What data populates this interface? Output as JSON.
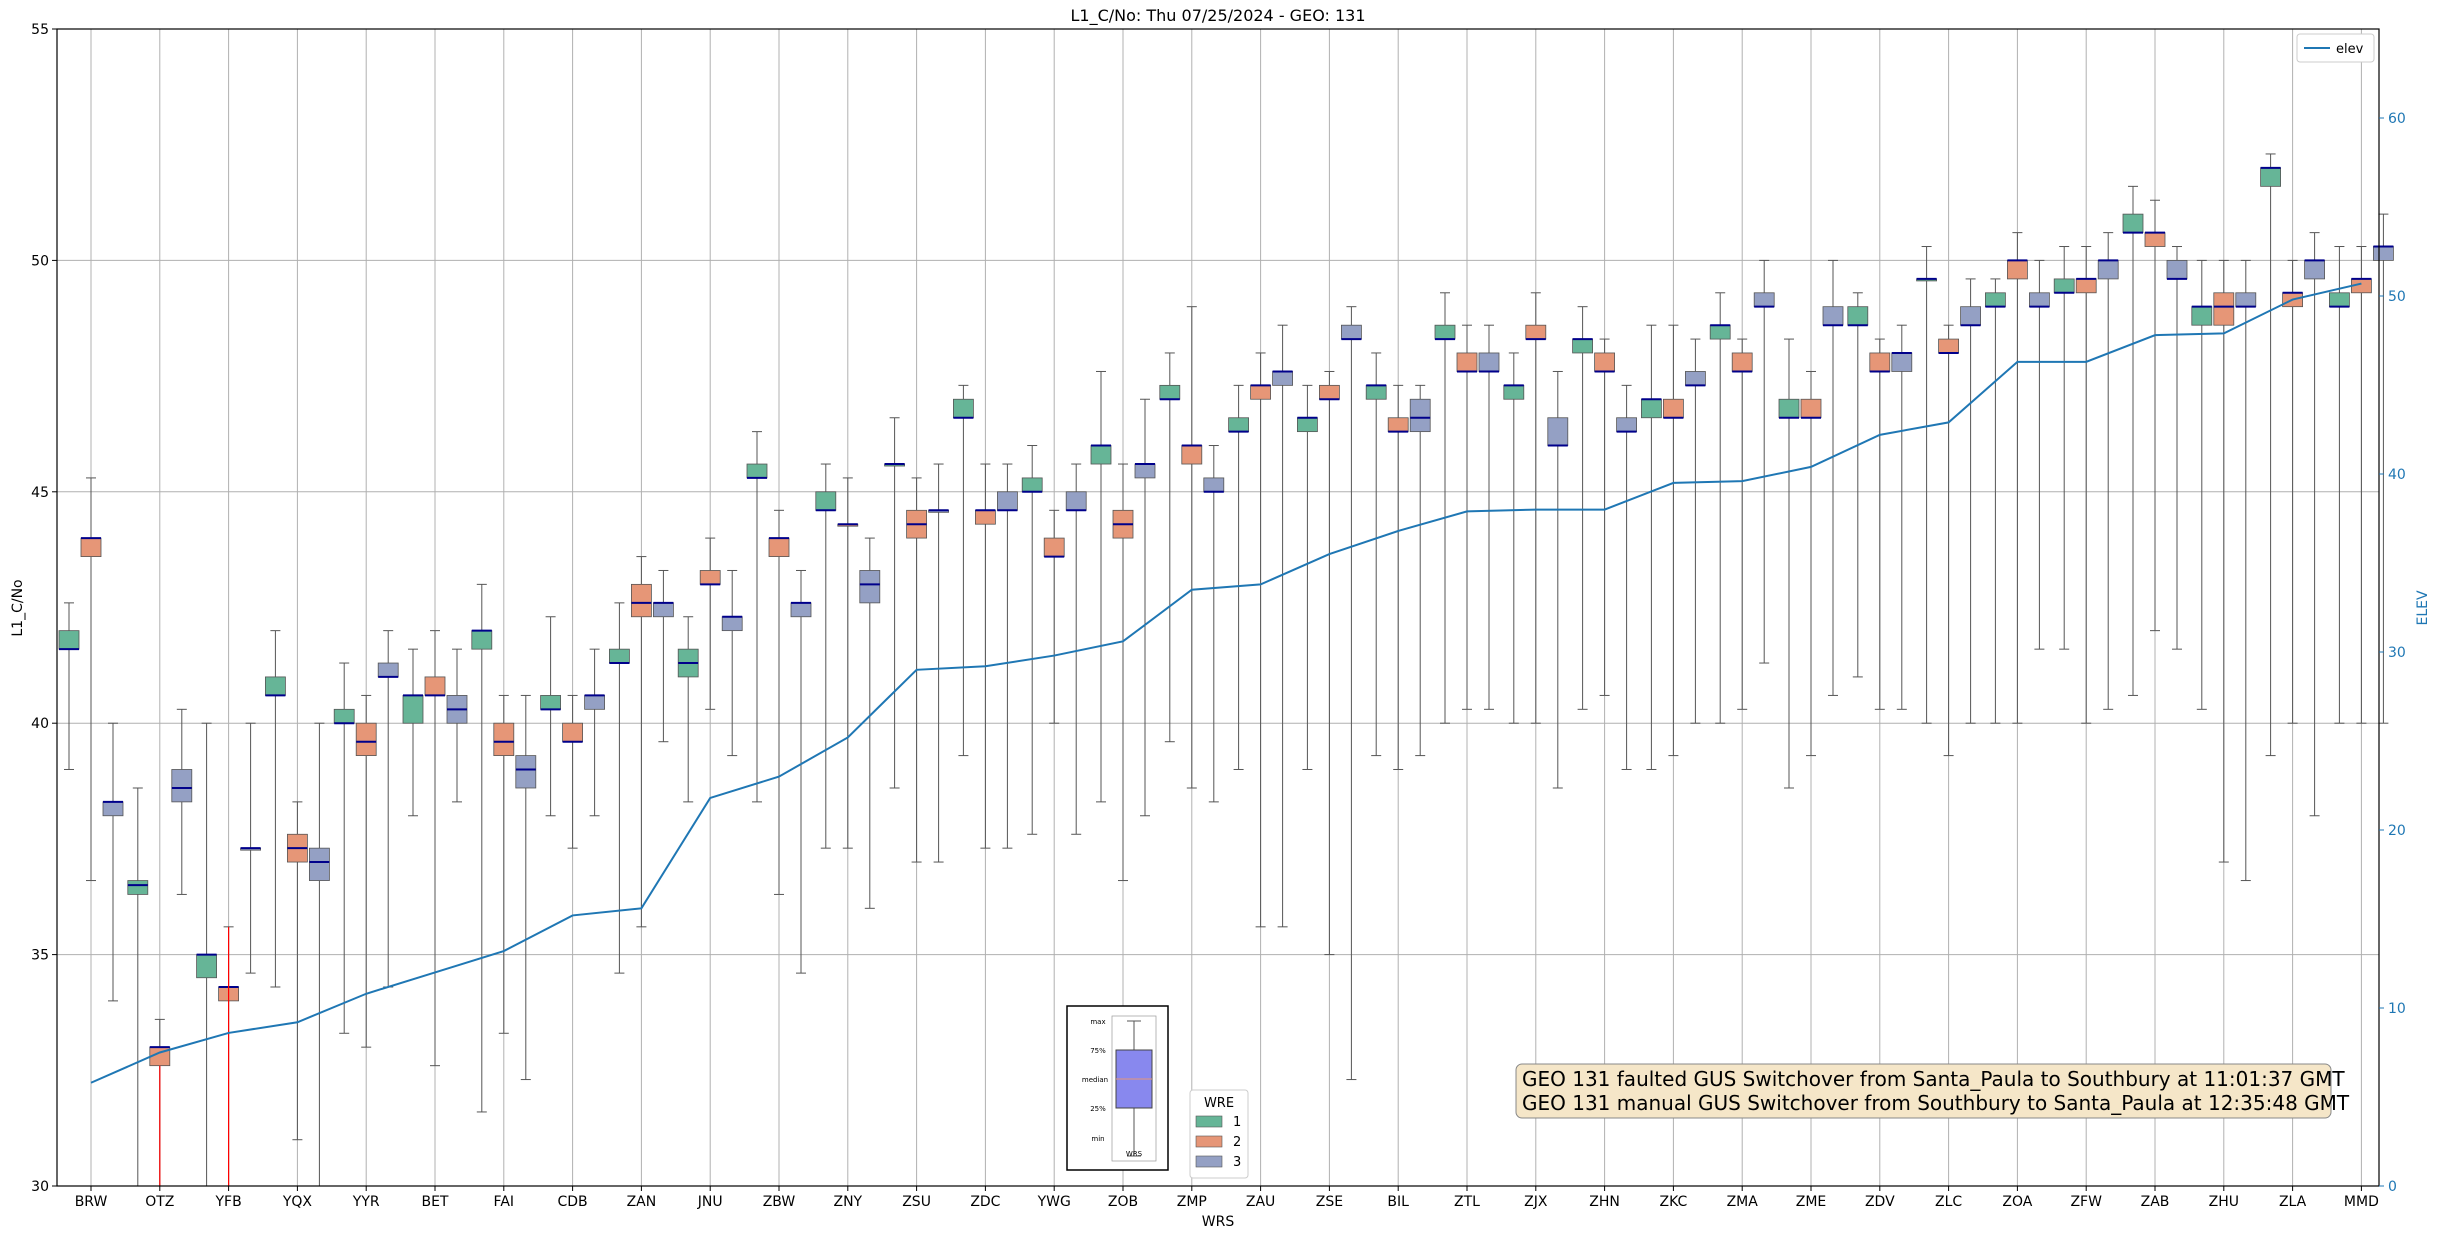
{
  "chart_data": {
    "type": "box",
    "title": "L1_C/No: Thu 07/25/2024 - GEO: 131",
    "xlabel": "WRS",
    "ylabel": "L1_C/No",
    "ylabel_right": "ELEV",
    "ylim": [
      30,
      55
    ],
    "ylim_right": [
      0,
      65
    ],
    "yticks": [
      30,
      35,
      40,
      45,
      50,
      55
    ],
    "yticks_right": [
      0,
      10,
      20,
      30,
      40,
      50,
      60
    ],
    "grid": true,
    "categories": [
      "BRW",
      "OTZ",
      "YFB",
      "YQX",
      "YYR",
      "BET",
      "FAI",
      "CDB",
      "ZAN",
      "JNU",
      "ZBW",
      "ZNY",
      "ZSU",
      "ZDC",
      "YWG",
      "ZOB",
      "ZMP",
      "ZAU",
      "ZSE",
      "BIL",
      "ZTL",
      "ZJX",
      "ZHN",
      "ZKC",
      "ZMA",
      "ZME",
      "ZDV",
      "ZLC",
      "ZOA",
      "ZFW",
      "ZAB",
      "ZHU",
      "ZLA",
      "MMD"
    ],
    "series_colors": {
      "1": "#66b597",
      "2": "#e69677",
      "3": "#94a0c4",
      "elev": "#1f77b4",
      "median": "#00008b",
      "whisker": "#555555",
      "whisker_alt": "#ff0000"
    },
    "box_series": [
      {
        "name": "1",
        "boxes": [
          [
            0,
            39.0,
            41.6,
            41.6,
            42.0,
            42.6
          ],
          [
            1,
            29.5,
            36.3,
            36.5,
            36.6,
            38.6
          ],
          [
            2,
            30.0,
            34.5,
            35.0,
            35.0,
            40.0
          ],
          [
            3,
            34.3,
            40.6,
            40.6,
            41.0,
            42.0
          ],
          [
            4,
            33.3,
            40.0,
            40.0,
            40.3,
            41.3
          ],
          [
            5,
            38.0,
            40.0,
            40.6,
            40.6,
            41.6
          ],
          [
            6,
            31.6,
            41.6,
            42.0,
            42.0,
            43.0
          ],
          [
            7,
            38.0,
            40.3,
            40.3,
            40.6,
            42.3
          ],
          [
            8,
            34.6,
            41.3,
            41.3,
            41.6,
            42.6
          ],
          [
            9,
            38.3,
            41.0,
            41.3,
            41.6,
            42.3
          ],
          [
            10,
            38.3,
            45.3,
            45.3,
            45.6,
            46.3
          ],
          [
            11,
            37.3,
            44.6,
            44.6,
            45.0,
            45.6
          ],
          [
            12,
            38.6,
            45.6,
            45.6,
            45.6,
            46.6
          ],
          [
            13,
            39.3,
            46.6,
            46.6,
            47.0,
            47.3
          ],
          [
            14,
            37.6,
            45.0,
            45.0,
            45.3,
            46.0
          ],
          [
            15,
            38.3,
            45.6,
            46.0,
            46.0,
            47.6
          ],
          [
            16,
            39.6,
            47.0,
            47.0,
            47.3,
            48.0
          ],
          [
            17,
            39.0,
            46.3,
            46.3,
            46.6,
            47.3
          ],
          [
            18,
            39.0,
            46.3,
            46.6,
            46.6,
            47.3
          ],
          [
            19,
            39.3,
            47.0,
            47.3,
            47.3,
            48.0
          ],
          [
            20,
            40.0,
            48.3,
            48.3,
            48.6,
            49.3
          ],
          [
            21,
            40.0,
            47.0,
            47.3,
            47.3,
            48.0
          ],
          [
            22,
            40.3,
            48.0,
            48.3,
            48.3,
            49.0
          ],
          [
            23,
            39.0,
            46.6,
            47.0,
            47.0,
            48.6
          ],
          [
            24,
            40.0,
            48.3,
            48.6,
            48.6,
            49.3
          ],
          [
            25,
            38.6,
            46.6,
            46.6,
            47.0,
            48.3
          ],
          [
            26,
            41.0,
            48.6,
            48.6,
            49.0,
            49.3
          ],
          [
            27,
            40.0,
            49.6,
            49.6,
            49.6,
            50.3
          ],
          [
            28,
            40.0,
            49.0,
            49.0,
            49.3,
            49.6
          ],
          [
            29,
            41.6,
            49.3,
            49.3,
            49.6,
            50.3
          ],
          [
            30,
            40.6,
            50.6,
            50.6,
            51.0,
            51.6
          ],
          [
            31,
            40.3,
            48.6,
            49.0,
            49.0,
            50.0
          ],
          [
            32,
            39.3,
            51.6,
            52.0,
            52.0,
            52.3
          ],
          [
            33,
            40.0,
            49.0,
            49.0,
            49.3,
            50.3
          ]
        ]
      },
      {
        "name": "2",
        "boxes": [
          [
            0,
            36.6,
            43.6,
            44.0,
            44.0,
            45.3
          ],
          [
            1,
            28.0,
            32.6,
            33.0,
            33.0,
            33.6
          ],
          [
            2,
            29.5,
            34.0,
            34.3,
            34.3,
            35.6
          ],
          [
            3,
            31.0,
            37.0,
            37.3,
            37.6,
            38.3
          ],
          [
            4,
            33.0,
            39.3,
            39.6,
            40.0,
            40.6
          ],
          [
            5,
            32.6,
            40.6,
            40.6,
            41.0,
            42.0
          ],
          [
            6,
            33.3,
            39.3,
            39.6,
            40.0,
            40.6
          ],
          [
            7,
            37.3,
            39.6,
            39.6,
            40.0,
            40.6
          ],
          [
            8,
            35.6,
            42.3,
            42.6,
            43.0,
            43.6
          ],
          [
            9,
            40.3,
            43.0,
            43.0,
            43.3,
            44.0
          ],
          [
            10,
            36.3,
            43.6,
            44.0,
            44.0,
            44.6
          ],
          [
            11,
            37.3,
            44.3,
            44.3,
            44.3,
            45.3
          ],
          [
            12,
            37.0,
            44.0,
            44.3,
            44.6,
            45.3
          ],
          [
            13,
            37.3,
            44.3,
            44.6,
            44.6,
            45.6
          ],
          [
            14,
            40.0,
            43.6,
            43.6,
            44.0,
            44.6
          ],
          [
            15,
            36.6,
            44.0,
            44.3,
            44.6,
            45.6
          ],
          [
            16,
            38.6,
            45.6,
            46.0,
            46.0,
            49.0
          ],
          [
            17,
            35.6,
            47.0,
            47.3,
            47.3,
            48.0
          ],
          [
            18,
            35.0,
            47.0,
            47.0,
            47.3,
            47.6
          ],
          [
            19,
            39.0,
            46.3,
            46.3,
            46.6,
            47.3
          ],
          [
            20,
            40.3,
            47.6,
            47.6,
            48.0,
            48.6
          ],
          [
            21,
            40.0,
            48.3,
            48.3,
            48.6,
            49.3
          ],
          [
            22,
            40.6,
            47.6,
            47.6,
            48.0,
            48.3
          ],
          [
            23,
            39.3,
            46.6,
            46.6,
            47.0,
            48.6
          ],
          [
            24,
            40.3,
            47.6,
            47.6,
            48.0,
            48.3
          ],
          [
            25,
            39.3,
            46.6,
            46.6,
            47.0,
            47.6
          ],
          [
            26,
            40.3,
            47.6,
            47.6,
            48.0,
            48.3
          ],
          [
            27,
            39.3,
            48.0,
            48.0,
            48.3,
            48.6
          ],
          [
            28,
            40.0,
            49.6,
            50.0,
            50.0,
            50.6
          ],
          [
            29,
            40.0,
            49.3,
            49.6,
            49.6,
            50.3
          ],
          [
            30,
            42.0,
            50.3,
            50.6,
            50.6,
            51.3
          ],
          [
            31,
            37.0,
            48.6,
            49.0,
            49.3,
            50.0
          ],
          [
            32,
            40.0,
            49.0,
            49.3,
            49.3,
            50.0
          ],
          [
            33,
            40.0,
            49.3,
            49.6,
            49.6,
            50.3
          ]
        ]
      },
      {
        "name": "3",
        "boxes": [
          [
            0,
            34.0,
            38.0,
            38.3,
            38.3,
            40.0
          ],
          [
            1,
            36.3,
            38.3,
            38.6,
            39.0,
            40.3
          ],
          [
            2,
            34.6,
            37.3,
            37.3,
            37.3,
            40.0
          ],
          [
            3,
            29.0,
            36.6,
            37.0,
            37.3,
            40.0
          ],
          [
            4,
            34.3,
            41.0,
            41.0,
            41.3,
            42.0
          ],
          [
            5,
            38.3,
            40.0,
            40.3,
            40.6,
            41.6
          ],
          [
            6,
            32.3,
            38.6,
            39.0,
            39.3,
            40.6
          ],
          [
            7,
            38.0,
            40.3,
            40.6,
            40.6,
            41.6
          ],
          [
            8,
            39.6,
            42.3,
            42.6,
            42.6,
            43.3
          ],
          [
            9,
            39.3,
            42.0,
            42.3,
            42.3,
            43.3
          ],
          [
            10,
            34.6,
            42.3,
            42.6,
            42.6,
            43.3
          ],
          [
            11,
            36.0,
            42.6,
            43.0,
            43.3,
            44.0
          ],
          [
            12,
            37.0,
            44.6,
            44.6,
            44.6,
            45.6
          ],
          [
            13,
            37.3,
            44.6,
            44.6,
            45.0,
            45.6
          ],
          [
            14,
            37.6,
            44.6,
            44.6,
            45.0,
            45.6
          ],
          [
            15,
            38.0,
            45.3,
            45.6,
            45.6,
            47.0
          ],
          [
            16,
            38.3,
            45.0,
            45.0,
            45.3,
            46.0
          ],
          [
            17,
            35.6,
            47.3,
            47.6,
            47.6,
            48.6
          ],
          [
            18,
            32.3,
            48.3,
            48.3,
            48.6,
            49.0
          ],
          [
            19,
            39.3,
            46.3,
            46.6,
            47.0,
            47.3
          ],
          [
            20,
            40.3,
            47.6,
            47.6,
            48.0,
            48.6
          ],
          [
            21,
            38.6,
            46.0,
            46.0,
            46.6,
            47.6
          ],
          [
            22,
            39.0,
            46.3,
            46.3,
            46.6,
            47.3
          ],
          [
            23,
            40.0,
            47.3,
            47.3,
            47.6,
            48.3
          ],
          [
            24,
            41.3,
            49.0,
            49.0,
            49.3,
            50.0
          ],
          [
            25,
            40.6,
            48.6,
            48.6,
            49.0,
            50.0
          ],
          [
            26,
            40.3,
            47.6,
            48.0,
            48.0,
            48.6
          ],
          [
            27,
            40.0,
            48.6,
            48.6,
            49.0,
            49.6
          ],
          [
            28,
            41.6,
            49.0,
            49.0,
            49.3,
            50.0
          ],
          [
            29,
            40.3,
            49.6,
            50.0,
            50.0,
            50.6
          ],
          [
            30,
            41.6,
            49.6,
            49.6,
            50.0,
            50.3
          ],
          [
            31,
            36.6,
            49.0,
            49.0,
            49.3,
            50.0
          ],
          [
            32,
            38.0,
            49.6,
            50.0,
            50.0,
            50.6
          ],
          [
            33,
            40.0,
            50.0,
            50.3,
            50.3,
            51.0
          ]
        ]
      }
    ],
    "red_whiskers": [
      [
        1,
        30,
        32.6
      ],
      [
        2,
        30,
        35.6
      ]
    ],
    "line_series": {
      "name": "elev",
      "values": [
        5.8,
        7.5,
        8.6,
        9.2,
        10.8,
        12.0,
        13.2,
        15.2,
        15.6,
        21.8,
        23.0,
        25.2,
        29.0,
        29.2,
        29.8,
        30.6,
        33.5,
        33.8,
        35.5,
        36.8,
        37.9,
        38.0,
        38.0,
        39.5,
        39.6,
        40.4,
        42.2,
        42.9,
        46.3,
        46.3,
        47.8,
        47.9,
        49.8,
        50.7
      ]
    },
    "legend_line": {
      "label": "elev",
      "placement": "top-right"
    },
    "legend_box": {
      "title": "WRE",
      "labels": [
        "1",
        "2",
        "3"
      ],
      "placement": "bottom-center"
    },
    "inset_labels": {
      "max": "max",
      "q3": "75%",
      "median": "median",
      "q1": "25%",
      "min": "min",
      "x": "WRS"
    },
    "annotations": [
      "GEO 131 faulted GUS Switchover from Santa_Paula to Southbury at 11:01:37 GMT",
      "GEO 131 manual GUS Switchover from Southbury to Santa_Paula at 12:35:48 GMT"
    ]
  }
}
